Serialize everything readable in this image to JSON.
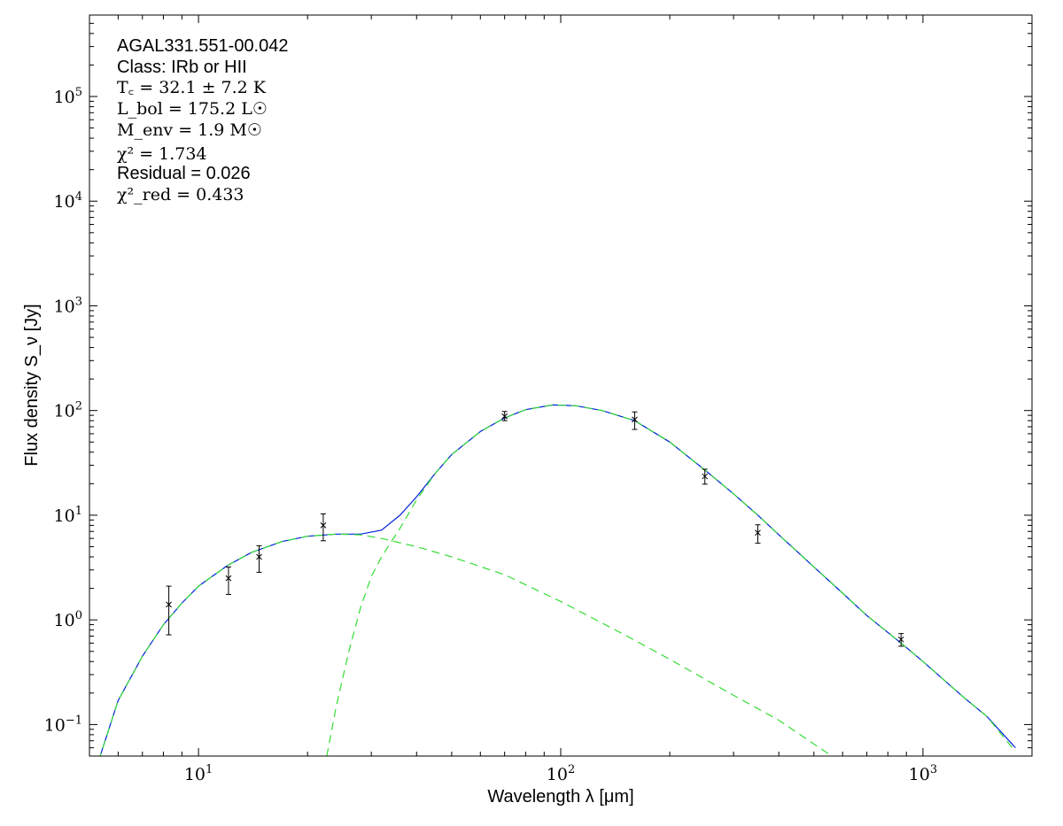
{
  "chart_data": {
    "type": "scatter",
    "xlabel": "Wavelength λ [μm]",
    "ylabel": "Flux density S_ν [Jy]",
    "x_scale": "log",
    "y_scale": "log",
    "xlim": [
      5,
      2000
    ],
    "ylim": [
      0.05,
      600000
    ],
    "grid": false,
    "x_ticks": [
      {
        "value": 10,
        "base": "10",
        "exp": "1"
      },
      {
        "value": 100,
        "base": "10",
        "exp": "2"
      },
      {
        "value": 1000,
        "base": "10",
        "exp": "3"
      }
    ],
    "y_ticks": [
      {
        "value": 0.1,
        "base": "10",
        "exp": "−1"
      },
      {
        "value": 1,
        "base": "10",
        "exp": "0"
      },
      {
        "value": 10,
        "base": "10",
        "exp": "1"
      },
      {
        "value": 100,
        "base": "10",
        "exp": "2"
      },
      {
        "value": 1000,
        "base": "10",
        "exp": "3"
      },
      {
        "value": 10000,
        "base": "10",
        "exp": "4"
      },
      {
        "value": 100000,
        "base": "10",
        "exp": "5"
      }
    ],
    "annotations": {
      "name": "AGAL331.551-00.042",
      "class": "Class: IRb or HII",
      "tc": "T꜀ = 32.1 ± 7.2 K",
      "lbol": "L_bol = 175.2 L☉",
      "menv": "M_env = 1.9 M☉",
      "chi2": "χ² = 1.734",
      "residual": "Residual = 0.026",
      "chi2red": "χ²_red = 0.433"
    },
    "series": [
      {
        "kind": "points",
        "color": "#000000",
        "points": [
          {
            "x": 8.28,
            "y": 1.4,
            "ylo": 0.72,
            "yhi": 2.1
          },
          {
            "x": 12.1,
            "y": 2.5,
            "ylo": 1.75,
            "yhi": 3.2
          },
          {
            "x": 14.7,
            "y": 4.0,
            "ylo": 2.85,
            "yhi": 5.1
          },
          {
            "x": 22.1,
            "y": 8.0,
            "ylo": 5.7,
            "yhi": 10.3
          },
          {
            "x": 70,
            "y": 88,
            "ylo": 80,
            "yhi": 98
          },
          {
            "x": 160,
            "y": 82,
            "ylo": 66,
            "yhi": 97
          },
          {
            "x": 250,
            "y": 23.5,
            "ylo": 19.8,
            "yhi": 27.5
          },
          {
            "x": 350,
            "y": 6.8,
            "ylo": 5.4,
            "yhi": 8.1
          },
          {
            "x": 870,
            "y": 0.65,
            "ylo": 0.56,
            "yhi": 0.74
          }
        ]
      },
      {
        "kind": "line",
        "style": "solid",
        "color": "#0022dd",
        "points": [
          [
            5.3,
            0.045
          ],
          [
            6,
            0.17
          ],
          [
            7,
            0.45
          ],
          [
            8,
            0.9
          ],
          [
            9,
            1.45
          ],
          [
            10,
            2.1
          ],
          [
            12,
            3.3
          ],
          [
            14,
            4.4
          ],
          [
            17,
            5.6
          ],
          [
            20,
            6.3
          ],
          [
            24,
            6.6
          ],
          [
            28,
            6.6
          ],
          [
            32,
            7.2
          ],
          [
            36,
            10
          ],
          [
            40,
            15
          ],
          [
            45,
            25
          ],
          [
            50,
            38
          ],
          [
            60,
            63
          ],
          [
            70,
            85
          ],
          [
            80,
            102
          ],
          [
            95,
            113
          ],
          [
            110,
            111
          ],
          [
            130,
            100
          ],
          [
            160,
            80
          ],
          [
            200,
            50
          ],
          [
            250,
            27
          ],
          [
            300,
            16
          ],
          [
            350,
            10
          ],
          [
            400,
            6.5
          ],
          [
            500,
            3.2
          ],
          [
            600,
            1.8
          ],
          [
            700,
            1.1
          ],
          [
            870,
            0.6
          ],
          [
            1000,
            0.4
          ],
          [
            1300,
            0.18
          ],
          [
            1500,
            0.12
          ],
          [
            1800,
            0.06
          ]
        ]
      },
      {
        "kind": "line",
        "style": "dashed",
        "color": "#33dd33",
        "points": [
          [
            5.3,
            0.045
          ],
          [
            6,
            0.17
          ],
          [
            7,
            0.45
          ],
          [
            8,
            0.9
          ],
          [
            9,
            1.45
          ],
          [
            10,
            2.1
          ],
          [
            12,
            3.3
          ],
          [
            14,
            4.4
          ],
          [
            17,
            5.6
          ],
          [
            20,
            6.3
          ],
          [
            24,
            6.6
          ],
          [
            28,
            6.5
          ],
          [
            32,
            6.0
          ],
          [
            40,
            5.0
          ],
          [
            50,
            4.0
          ],
          [
            70,
            2.7
          ],
          [
            100,
            1.5
          ],
          [
            150,
            0.72
          ],
          [
            200,
            0.42
          ],
          [
            300,
            0.19
          ],
          [
            400,
            0.11
          ],
          [
            560,
            0.05
          ]
        ]
      },
      {
        "kind": "line",
        "style": "dashed",
        "color": "#33dd33",
        "points": [
          [
            22.6,
            0.05
          ],
          [
            24,
            0.15
          ],
          [
            26,
            0.5
          ],
          [
            28,
            1.3
          ],
          [
            30,
            2.6
          ],
          [
            32,
            4.0
          ],
          [
            36,
            7.5
          ],
          [
            40,
            14
          ],
          [
            45,
            25
          ],
          [
            50,
            38
          ],
          [
            60,
            63
          ],
          [
            70,
            85
          ],
          [
            80,
            102
          ],
          [
            95,
            113
          ],
          [
            110,
            111
          ],
          [
            130,
            100
          ],
          [
            160,
            80
          ],
          [
            200,
            50
          ],
          [
            250,
            27
          ],
          [
            300,
            16
          ],
          [
            350,
            10
          ],
          [
            400,
            6.5
          ],
          [
            500,
            3.2
          ],
          [
            600,
            1.8
          ],
          [
            700,
            1.1
          ],
          [
            870,
            0.6
          ],
          [
            1000,
            0.4
          ],
          [
            1300,
            0.18
          ],
          [
            1500,
            0.12
          ],
          [
            1800,
            0.055
          ]
        ]
      }
    ]
  }
}
